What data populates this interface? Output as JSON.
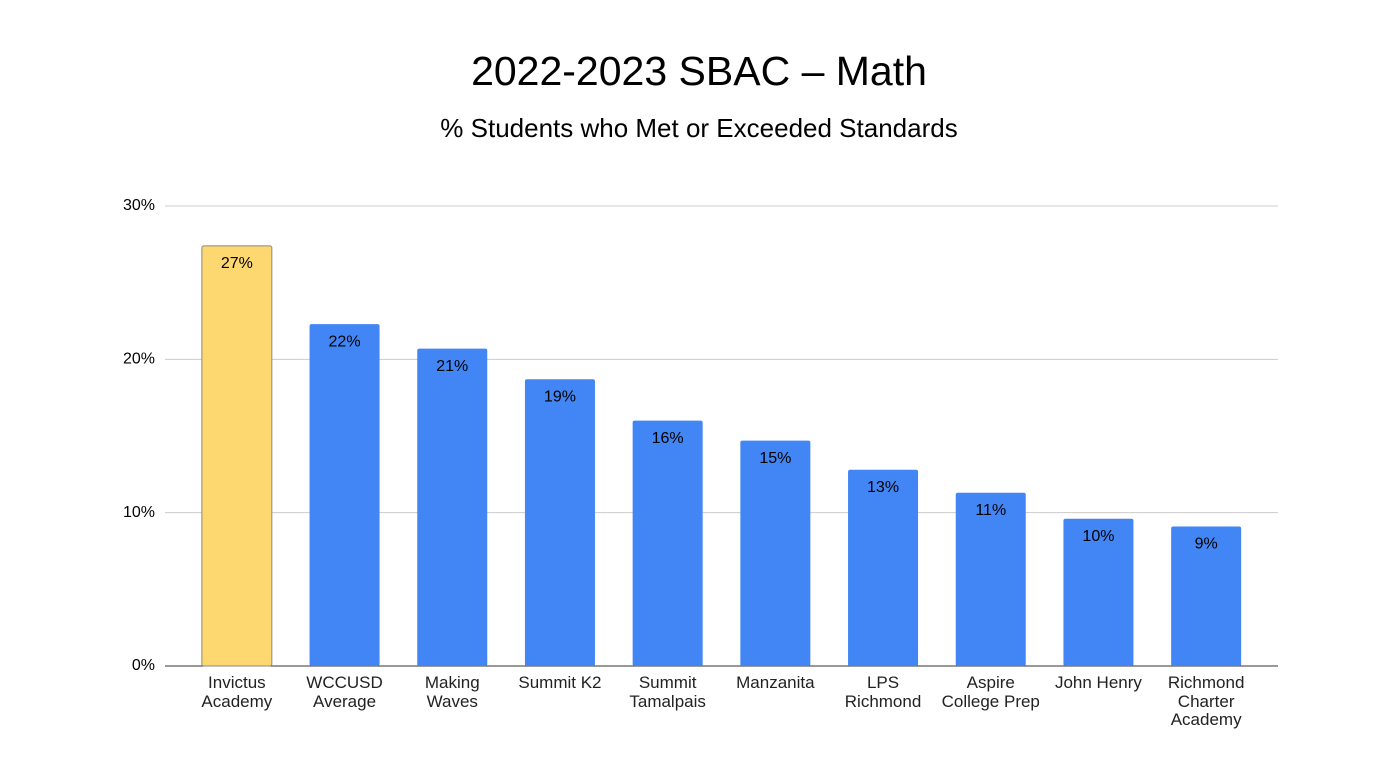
{
  "chart_data": {
    "type": "bar",
    "title": "2022-2023 SBAC – Math",
    "subtitle": "% Students who Met or Exceeded Standards",
    "categories": [
      "Invictus Academy",
      "WCCUSD Average",
      "Making Waves",
      "Summit K2",
      "Summit Tamalpais",
      "Manzanita",
      "LPS Richmond",
      "Aspire College Prep",
      "John Henry",
      "Richmond Charter Academy"
    ],
    "values": [
      27.4,
      22.3,
      20.7,
      18.7,
      16.0,
      14.7,
      12.8,
      11.3,
      9.6,
      9.1
    ],
    "value_labels": [
      "27%",
      "22%",
      "21%",
      "19%",
      "16%",
      "15%",
      "13%",
      "11%",
      "10%",
      "9%"
    ],
    "colors": [
      "#fdd870",
      "#4285f4",
      "#4285f4",
      "#4285f4",
      "#4285f4",
      "#4285f4",
      "#4285f4",
      "#4285f4",
      "#4285f4",
      "#4285f4"
    ],
    "ylim": [
      0,
      30
    ],
    "yticks": [
      {
        "value": 0,
        "label": "0%"
      },
      {
        "value": 10,
        "label": "10%"
      },
      {
        "value": 20,
        "label": "20%"
      },
      {
        "value": 30,
        "label": "30%"
      }
    ],
    "grid": true
  }
}
